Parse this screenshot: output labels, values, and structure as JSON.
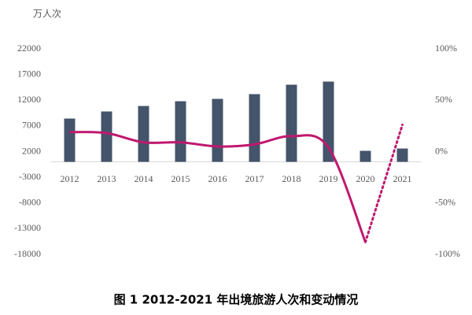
{
  "chart_data": {
    "type": "bar-line",
    "title": "图 1 2012-2021 年出境旅游人次和变动情况",
    "y_label": "万人次",
    "categories": [
      "2012",
      "2013",
      "2014",
      "2015",
      "2016",
      "2017",
      "2018",
      "2019",
      "2020",
      "2021"
    ],
    "series": [
      {
        "type": "bar",
        "color": "#44546a",
        "values": [
          8430,
          9810,
          10880,
          11800,
          12260,
          13180,
          15020,
          15630,
          2150,
          2600
        ]
      },
      {
        "type": "line",
        "axis": "y2",
        "color": "#c0186f",
        "values": [
          19,
          18,
          9,
          9,
          5,
          7,
          15,
          4,
          -88,
          26
        ],
        "dotted_last_segment": true
      }
    ],
    "ylim": [
      -18000,
      22000
    ],
    "yticks": [
      22000,
      17000,
      12000,
      7000,
      2000,
      -3000,
      -8000,
      -13000,
      -18000
    ],
    "y2lim": [
      -100,
      100
    ],
    "y2ticks": [
      {
        "value": 100,
        "label": "100%"
      },
      {
        "value": 50,
        "label": "50%"
      },
      {
        "value": 0,
        "label": "0%"
      },
      {
        "value": -50,
        "label": "-50%"
      },
      {
        "value": -100,
        "label": "-100%"
      }
    ]
  }
}
